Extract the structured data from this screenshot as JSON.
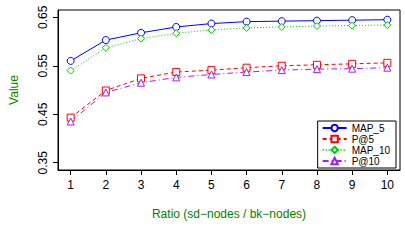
{
  "chart_data": {
    "type": "line",
    "x_label": "Ratio (sd−nodes / bk−nodes)",
    "y_label": "Value",
    "x": [
      1,
      2,
      3,
      4,
      5,
      6,
      7,
      8,
      9,
      10
    ],
    "xlim": [
      0.64,
      10.36
    ],
    "xticks": [
      1,
      2,
      3,
      4,
      5,
      6,
      7,
      8,
      9,
      10
    ],
    "ylim": [
      0.335,
      0.665
    ],
    "yticks": [
      0.35,
      0.45,
      0.55,
      0.65
    ],
    "grid": false,
    "legend": "bottom-right",
    "series": [
      {
        "name": "MAP_5",
        "color": "#0000ff",
        "marker": "circle",
        "line_style": "solid",
        "values": [
          0.56,
          0.603,
          0.618,
          0.63,
          0.637,
          0.641,
          0.642,
          0.643,
          0.644,
          0.645
        ]
      },
      {
        "name": "P@5",
        "color": "#ff0000",
        "marker": "square",
        "line_style": "dashed",
        "values": [
          0.443,
          0.499,
          0.524,
          0.537,
          0.541,
          0.546,
          0.55,
          0.552,
          0.554,
          0.556
        ]
      },
      {
        "name": "MAP_10",
        "color": "#00cd00",
        "marker": "diamond",
        "line_style": "dotted",
        "values": [
          0.54,
          0.587,
          0.606,
          0.617,
          0.624,
          0.628,
          0.63,
          0.632,
          0.633,
          0.634
        ]
      },
      {
        "name": "P@10",
        "color": "#a020f0",
        "marker": "triangle",
        "line_style": "dashdot",
        "values": [
          0.435,
          0.495,
          0.515,
          0.526,
          0.532,
          0.537,
          0.541,
          0.543,
          0.544,
          0.546
        ]
      }
    ]
  }
}
